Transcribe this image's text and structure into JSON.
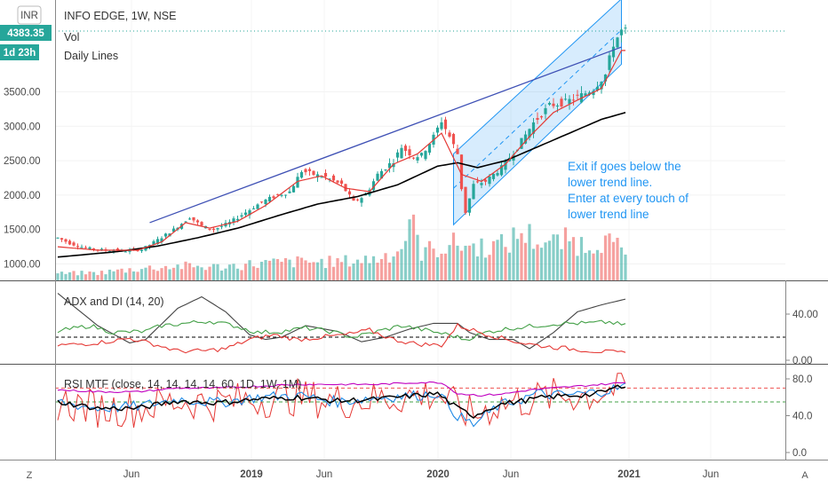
{
  "header": {
    "title": "INFO EDGE, 1W, NSE",
    "vol_label": "Vol",
    "daily_lines_label": "Daily Lines",
    "currency_badge": "INR",
    "last_price_tag": "4383.35",
    "countdown_tag": "1d 23h"
  },
  "annotation": {
    "lines": [
      "Exit if goes below the",
      "lower trend line.",
      "Enter at every touch of",
      "lower trend line"
    ]
  },
  "bottom_bar": {
    "left_button": "Z",
    "right_button": "A"
  },
  "colors": {
    "up": "#26a69a",
    "down": "#ef5350",
    "black_line": "#000000",
    "red_line": "#e53935",
    "trend_line": "#3f51b5",
    "channel": "#2196f3",
    "adx_line": "#444444",
    "di_plus": "#43a047",
    "di_minus": "#e53935",
    "rsi_main": "#e53935",
    "rsi_blue": "#1e88e5",
    "rsi_black": "#000000",
    "rsi_magenta": "#c000c0",
    "tag_bg": "#26a69a"
  },
  "chart_data": [
    {
      "type": "candlestick",
      "title": "INFO EDGE, 1W, NSE",
      "y_ticks": [
        "3500.00",
        "3000.00",
        "2500.00",
        "2000.00",
        "1500.00",
        "1000.00"
      ],
      "x_ticks": [
        "Jun",
        "2019",
        "Jun",
        "2020",
        "Jun",
        "2021",
        "Jun"
      ],
      "ylim": [
        850,
        4550
      ],
      "last_price": 4383.35,
      "close_anchors": [
        [
          0,
          1380
        ],
        [
          3,
          1300
        ],
        [
          7,
          1230
        ],
        [
          12,
          1200
        ],
        [
          17,
          1190
        ],
        [
          21,
          1210
        ],
        [
          25,
          1350
        ],
        [
          29,
          1500
        ],
        [
          33,
          1680
        ],
        [
          36,
          1550
        ],
        [
          39,
          1500
        ],
        [
          43,
          1600
        ],
        [
          47,
          1750
        ],
        [
          51,
          1900
        ],
        [
          55,
          2000
        ],
        [
          58,
          2050
        ],
        [
          61,
          2350
        ],
        [
          64,
          2300
        ],
        [
          67,
          2260
        ],
        [
          71,
          2150
        ],
        [
          74,
          1900
        ],
        [
          77,
          2000
        ],
        [
          80,
          2300
        ],
        [
          84,
          2500
        ],
        [
          86,
          2700
        ],
        [
          89,
          2560
        ],
        [
          91,
          2580
        ],
        [
          94,
          2850
        ],
        [
          96,
          3080
        ],
        [
          98,
          2850
        ],
        [
          100,
          2600
        ],
        [
          101,
          2100
        ],
        [
          102,
          1750
        ],
        [
          104,
          2150
        ],
        [
          107,
          2200
        ],
        [
          111,
          2400
        ],
        [
          115,
          2700
        ],
        [
          119,
          3050
        ],
        [
          123,
          3300
        ],
        [
          127,
          3350
        ],
        [
          131,
          3450
        ],
        [
          134,
          3550
        ],
        [
          137,
          3750
        ],
        [
          139,
          4200
        ],
        [
          141,
          4383
        ]
      ],
      "volume_anchors": [
        [
          0,
          40
        ],
        [
          10,
          45
        ],
        [
          20,
          70
        ],
        [
          30,
          85
        ],
        [
          40,
          80
        ],
        [
          50,
          100
        ],
        [
          60,
          110
        ],
        [
          70,
          110
        ],
        [
          80,
          130
        ],
        [
          86,
          190
        ],
        [
          88,
          370
        ],
        [
          91,
          170
        ],
        [
          100,
          220
        ],
        [
          104,
          200
        ],
        [
          112,
          210
        ],
        [
          116,
          290
        ],
        [
          120,
          240
        ],
        [
          124,
          220
        ],
        [
          128,
          240
        ],
        [
          132,
          210
        ],
        [
          136,
          250
        ],
        [
          140,
          190
        ],
        [
          142,
          150
        ]
      ],
      "black_ma": {
        "name": "Daily Lines",
        "anchors": [
          [
            0,
            1100
          ],
          [
            15,
            1180
          ],
          [
            25,
            1260
          ],
          [
            35,
            1380
          ],
          [
            45,
            1520
          ],
          [
            55,
            1700
          ],
          [
            65,
            1870
          ],
          [
            75,
            1980
          ],
          [
            85,
            2150
          ],
          [
            95,
            2420
          ],
          [
            100,
            2470
          ],
          [
            105,
            2400
          ],
          [
            112,
            2500
          ],
          [
            120,
            2700
          ],
          [
            128,
            2900
          ],
          [
            136,
            3100
          ],
          [
            142,
            3200
          ]
        ]
      },
      "red_ma": {
        "anchors": [
          [
            0,
            1250
          ],
          [
            10,
            1200
          ],
          [
            20,
            1200
          ],
          [
            26,
            1320
          ],
          [
            32,
            1600
          ],
          [
            38,
            1520
          ],
          [
            45,
            1620
          ],
          [
            52,
            1850
          ],
          [
            60,
            2200
          ],
          [
            66,
            2280
          ],
          [
            72,
            2100
          ],
          [
            78,
            2050
          ],
          [
            84,
            2450
          ],
          [
            90,
            2600
          ],
          [
            96,
            2900
          ],
          [
            101,
            2300
          ],
          [
            106,
            2200
          ],
          [
            112,
            2450
          ],
          [
            118,
            2850
          ],
          [
            124,
            3200
          ],
          [
            130,
            3380
          ],
          [
            136,
            3550
          ],
          [
            141,
            4100
          ]
        ]
      },
      "trend_line": {
        "from": [
          23,
          1600
        ],
        "to": [
          141,
          4150
        ]
      },
      "channel": {
        "lower_from": [
          99,
          1570
        ],
        "lower_to": [
          141,
          3900
        ],
        "upper_from": [
          99,
          2600
        ],
        "upper_to": [
          141,
          4850
        ],
        "mid_from": [
          99,
          2100
        ],
        "mid_to": [
          141,
          4400
        ]
      },
      "volume_ylim": [
        0,
        450
      ]
    },
    {
      "type": "line",
      "title": "ADX and DI (14, 20)",
      "y_ticks": [
        "40.00",
        "0.00"
      ],
      "ylim": [
        -2,
        60
      ],
      "reference_level": 20,
      "series": [
        {
          "key": "adx",
          "anchors": [
            [
              0,
              58
            ],
            [
              10,
              30
            ],
            [
              18,
              15
            ],
            [
              22,
              18
            ],
            [
              30,
              45
            ],
            [
              36,
              55
            ],
            [
              42,
              42
            ],
            [
              48,
              22
            ],
            [
              52,
              18
            ],
            [
              56,
              20
            ],
            [
              62,
              30
            ],
            [
              70,
              25
            ],
            [
              76,
              16
            ],
            [
              82,
              20
            ],
            [
              88,
              27
            ],
            [
              94,
              32
            ],
            [
              100,
              32
            ],
            [
              103,
              24
            ],
            [
              108,
              18
            ],
            [
              114,
              18
            ],
            [
              118,
              10
            ],
            [
              124,
              24
            ],
            [
              130,
              42
            ],
            [
              136,
              48
            ],
            [
              142,
              53
            ]
          ]
        },
        {
          "key": "di_plus",
          "anchors": [
            [
              0,
              25
            ],
            [
              8,
              30
            ],
            [
              14,
              24
            ],
            [
              22,
              25
            ],
            [
              26,
              30
            ],
            [
              32,
              32
            ],
            [
              38,
              34
            ],
            [
              44,
              30
            ],
            [
              50,
              24
            ],
            [
              56,
              25
            ],
            [
              62,
              28
            ],
            [
              68,
              25
            ],
            [
              74,
              20
            ],
            [
              80,
              25
            ],
            [
              86,
              30
            ],
            [
              92,
              26
            ],
            [
              98,
              22
            ],
            [
              102,
              18
            ],
            [
              108,
              25
            ],
            [
              114,
              28
            ],
            [
              120,
              30
            ],
            [
              126,
              32
            ],
            [
              132,
              32
            ],
            [
              138,
              33
            ],
            [
              142,
              30
            ]
          ]
        },
        {
          "key": "di_minus",
          "anchors": [
            [
              0,
              13
            ],
            [
              6,
              14
            ],
            [
              12,
              16
            ],
            [
              18,
              19
            ],
            [
              24,
              14
            ],
            [
              30,
              8
            ],
            [
              36,
              8
            ],
            [
              42,
              10
            ],
            [
              48,
              18
            ],
            [
              54,
              22
            ],
            [
              60,
              18
            ],
            [
              66,
              20
            ],
            [
              72,
              22
            ],
            [
              78,
              26
            ],
            [
              84,
              18
            ],
            [
              90,
              14
            ],
            [
              96,
              13
            ],
            [
              100,
              30
            ],
            [
              104,
              26
            ],
            [
              110,
              20
            ],
            [
              116,
              15
            ],
            [
              122,
              12
            ],
            [
              128,
              10
            ],
            [
              134,
              8
            ],
            [
              142,
              6
            ]
          ]
        }
      ]
    },
    {
      "type": "line",
      "title": "RSI MTF (close, 14, 14, 14, 14, 60, 1D, 1W, 1M)",
      "y_ticks": [
        "80.0",
        "40.0",
        "0.0"
      ],
      "ylim": [
        0,
        90
      ],
      "reference_levels": [
        70,
        55
      ],
      "series": [
        {
          "key": "rsi_blue",
          "anchors": [
            [
              0,
              55
            ],
            [
              10,
              48
            ],
            [
              20,
              50
            ],
            [
              30,
              58
            ],
            [
              40,
              54
            ],
            [
              50,
              60
            ],
            [
              60,
              62
            ],
            [
              70,
              55
            ],
            [
              80,
              60
            ],
            [
              90,
              62
            ],
            [
              95,
              65
            ],
            [
              100,
              40
            ],
            [
              104,
              30
            ],
            [
              110,
              50
            ],
            [
              116,
              58
            ],
            [
              120,
              64
            ],
            [
              126,
              62
            ],
            [
              132,
              64
            ],
            [
              138,
              68
            ],
            [
              142,
              72
            ]
          ]
        },
        {
          "key": "rsi_black",
          "anchors": [
            [
              0,
              55
            ],
            [
              10,
              48
            ],
            [
              20,
              48
            ],
            [
              30,
              56
            ],
            [
              40,
              54
            ],
            [
              50,
              58
            ],
            [
              60,
              60
            ],
            [
              70,
              56
            ],
            [
              80,
              58
            ],
            [
              90,
              62
            ],
            [
              95,
              64
            ],
            [
              100,
              48
            ],
            [
              104,
              40
            ],
            [
              110,
              52
            ],
            [
              116,
              56
            ],
            [
              122,
              60
            ],
            [
              128,
              62
            ],
            [
              134,
              63
            ],
            [
              138,
              68
            ],
            [
              142,
              74
            ]
          ]
        },
        {
          "key": "rsi_magenta",
          "anchors": [
            [
              0,
              68
            ],
            [
              10,
              66
            ],
            [
              20,
              66
            ],
            [
              30,
              70
            ],
            [
              40,
              70
            ],
            [
              50,
              72
            ],
            [
              60,
              74
            ],
            [
              70,
              74
            ],
            [
              80,
              74
            ],
            [
              90,
              76
            ],
            [
              96,
              76
            ],
            [
              100,
              64
            ],
            [
              106,
              62
            ],
            [
              112,
              64
            ],
            [
              118,
              68
            ],
            [
              124,
              70
            ],
            [
              130,
              72
            ],
            [
              136,
              74
            ],
            [
              142,
              76
            ]
          ]
        }
      ]
    }
  ]
}
